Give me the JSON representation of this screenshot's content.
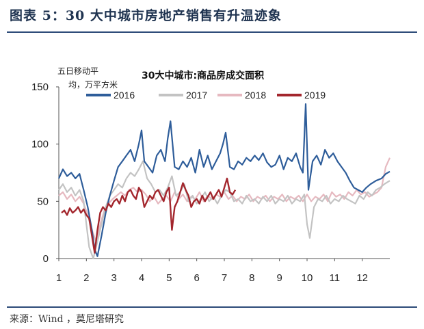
{
  "figure": {
    "title": "图表 5：30 大中城市房地产销售有升温迹象",
    "source": "来源：Wind ，莫尼塔研究"
  },
  "colors": {
    "2016": "#2e5d9a",
    "2017": "#c3c3c3",
    "2018": "#e6b9c0",
    "2019": "#a3262d",
    "rule": "#2c4a78"
  },
  "chart_data": {
    "type": "line",
    "title": "30大中城市:商品房成交面积",
    "ylabel_line1": "五日移动平",
    "ylabel_line2": "均，万平方米",
    "ylim": [
      0,
      150
    ],
    "yticks": [
      "0",
      "50",
      "100",
      "150"
    ],
    "xlim": [
      1,
      13
    ],
    "xticks": [
      "1",
      "2",
      "3",
      "4",
      "5",
      "6",
      "7",
      "8",
      "9",
      "10",
      "11",
      "12"
    ],
    "legend_position": "top",
    "series": [
      {
        "name": "2016",
        "x": [
          1.0,
          1.15,
          1.3,
          1.45,
          1.6,
          1.75,
          1.9,
          2.05,
          2.2,
          2.3,
          2.4,
          2.55,
          2.7,
          2.85,
          3.0,
          3.15,
          3.3,
          3.45,
          3.6,
          3.75,
          3.9,
          4.0,
          4.1,
          4.25,
          4.4,
          4.55,
          4.7,
          4.85,
          4.95,
          5.05,
          5.2,
          5.35,
          5.5,
          5.65,
          5.8,
          5.95,
          6.1,
          6.25,
          6.4,
          6.55,
          6.7,
          6.85,
          6.95,
          7.05,
          7.2,
          7.35,
          7.5,
          7.65,
          7.8,
          7.95,
          8.1,
          8.25,
          8.4,
          8.55,
          8.7,
          8.85,
          9.0,
          9.15,
          9.3,
          9.45,
          9.6,
          9.75,
          9.85,
          9.95,
          10.05,
          10.2,
          10.35,
          10.5,
          10.65,
          10.8,
          10.95,
          11.1,
          11.25,
          11.4,
          11.55,
          11.7,
          11.85,
          12.0,
          12.15,
          12.3,
          12.5,
          12.7,
          12.85,
          13.0
        ],
        "values": [
          70,
          78,
          72,
          75,
          70,
          74,
          60,
          45,
          25,
          8,
          2,
          20,
          40,
          55,
          68,
          80,
          85,
          90,
          95,
          85,
          100,
          112,
          85,
          80,
          75,
          90,
          95,
          85,
          105,
          120,
          80,
          78,
          85,
          80,
          88,
          75,
          95,
          80,
          90,
          78,
          85,
          92,
          100,
          110,
          80,
          78,
          85,
          82,
          88,
          85,
          90,
          86,
          92,
          84,
          80,
          82,
          90,
          78,
          88,
          85,
          92,
          80,
          75,
          135,
          60,
          85,
          90,
          82,
          95,
          88,
          92,
          85,
          80,
          75,
          68,
          62,
          60,
          58,
          62,
          65,
          68,
          70,
          74,
          76
        ]
      },
      {
        "name": "2017",
        "x": [
          1.0,
          1.15,
          1.3,
          1.45,
          1.6,
          1.75,
          1.9,
          2.0,
          2.1,
          2.25,
          2.4,
          2.55,
          2.7,
          2.85,
          3.0,
          3.15,
          3.3,
          3.45,
          3.6,
          3.75,
          3.9,
          4.05,
          4.2,
          4.35,
          4.5,
          4.65,
          4.8,
          4.95,
          5.1,
          5.25,
          5.4,
          5.55,
          5.7,
          5.85,
          6.0,
          6.15,
          6.3,
          6.45,
          6.6,
          6.75,
          6.9,
          7.05,
          7.2,
          7.35,
          7.5,
          7.65,
          7.8,
          7.95,
          8.1,
          8.25,
          8.4,
          8.55,
          8.7,
          8.85,
          9.0,
          9.15,
          9.3,
          9.45,
          9.6,
          9.75,
          9.9,
          10.0,
          10.1,
          10.25,
          10.4,
          10.55,
          10.7,
          10.85,
          11.0,
          11.15,
          11.3,
          11.45,
          11.6,
          11.75,
          11.9,
          12.05,
          12.2,
          12.35,
          12.5,
          12.65,
          12.8,
          13.0
        ],
        "values": [
          60,
          65,
          58,
          62,
          55,
          60,
          50,
          30,
          10,
          0,
          15,
          30,
          45,
          55,
          60,
          65,
          62,
          70,
          75,
          72,
          78,
          85,
          70,
          65,
          58,
          60,
          55,
          62,
          72,
          55,
          58,
          65,
          50,
          55,
          48,
          52,
          58,
          50,
          54,
          48,
          55,
          60,
          58,
          50,
          52,
          48,
          55,
          50,
          52,
          48,
          54,
          50,
          55,
          48,
          52,
          50,
          55,
          48,
          52,
          50,
          56,
          30,
          18,
          45,
          52,
          50,
          55,
          48,
          52,
          50,
          55,
          52,
          50,
          48,
          55,
          52,
          58,
          55,
          60,
          62,
          65,
          68
        ]
      },
      {
        "name": "2018",
        "x": [
          1.0,
          1.15,
          1.3,
          1.45,
          1.6,
          1.75,
          1.9,
          2.05,
          2.2,
          2.35,
          2.5,
          2.65,
          2.8,
          2.95,
          3.1,
          3.25,
          3.4,
          3.55,
          3.7,
          3.85,
          4.0,
          4.15,
          4.3,
          4.45,
          4.6,
          4.75,
          4.9,
          5.05,
          5.2,
          5.35,
          5.5,
          5.65,
          5.8,
          5.95,
          6.1,
          6.25,
          6.4,
          6.55,
          6.7,
          6.85,
          7.0,
          7.15,
          7.3,
          7.45,
          7.6,
          7.75,
          7.9,
          8.05,
          8.2,
          8.35,
          8.5,
          8.65,
          8.8,
          8.95,
          9.1,
          9.25,
          9.4,
          9.55,
          9.7,
          9.85,
          10.0,
          10.15,
          10.3,
          10.45,
          10.6,
          10.75,
          10.9,
          11.05,
          11.2,
          11.35,
          11.5,
          11.65,
          11.8,
          11.95,
          12.1,
          12.25,
          12.4,
          12.55,
          12.7,
          12.85,
          13.0
        ],
        "values": [
          55,
          58,
          52,
          56,
          50,
          54,
          48,
          38,
          25,
          15,
          30,
          42,
          48,
          52,
          55,
          58,
          55,
          60,
          62,
          58,
          60,
          56,
          50,
          54,
          48,
          52,
          55,
          50,
          58,
          52,
          56,
          50,
          54,
          52,
          58,
          50,
          55,
          52,
          56,
          54,
          58,
          52,
          55,
          50,
          54,
          52,
          56,
          50,
          54,
          52,
          55,
          50,
          54,
          52,
          56,
          50,
          54,
          52,
          55,
          50,
          56,
          50,
          54,
          52,
          56,
          50,
          58,
          54,
          56,
          52,
          58,
          55,
          60,
          56,
          58,
          54,
          56,
          58,
          62,
          80,
          88
        ]
      },
      {
        "name": "2019",
        "x": [
          1.1,
          1.2,
          1.3,
          1.4,
          1.5,
          1.6,
          1.7,
          1.8,
          1.9,
          2.0,
          2.1,
          2.2,
          2.3,
          2.4,
          2.5,
          2.6,
          2.7,
          2.8,
          2.9,
          3.0,
          3.1,
          3.2,
          3.3,
          3.4,
          3.5,
          3.6,
          3.7,
          3.8,
          3.9,
          4.0,
          4.1,
          4.2,
          4.3,
          4.4,
          4.5,
          4.6,
          4.7,
          4.8,
          4.9,
          5.0,
          5.1,
          5.2,
          5.3,
          5.4,
          5.5,
          5.6,
          5.7,
          5.8,
          5.9,
          6.0,
          6.1,
          6.2,
          6.3,
          6.4,
          6.5,
          6.6,
          6.7,
          6.8,
          6.9,
          7.0,
          7.1,
          7.2,
          7.3,
          7.4
        ],
        "values": [
          40,
          42,
          38,
          44,
          40,
          42,
          45,
          40,
          43,
          38,
          35,
          20,
          5,
          25,
          40,
          45,
          42,
          48,
          45,
          50,
          52,
          48,
          55,
          50,
          58,
          60,
          55,
          52,
          62,
          58,
          45,
          50,
          55,
          52,
          58,
          60,
          55,
          50,
          58,
          62,
          25,
          45,
          50,
          58,
          66,
          60,
          55,
          45,
          50,
          52,
          48,
          55,
          50,
          54,
          58,
          52,
          56,
          60,
          54,
          62,
          70,
          58,
          56,
          60
        ]
      }
    ]
  }
}
